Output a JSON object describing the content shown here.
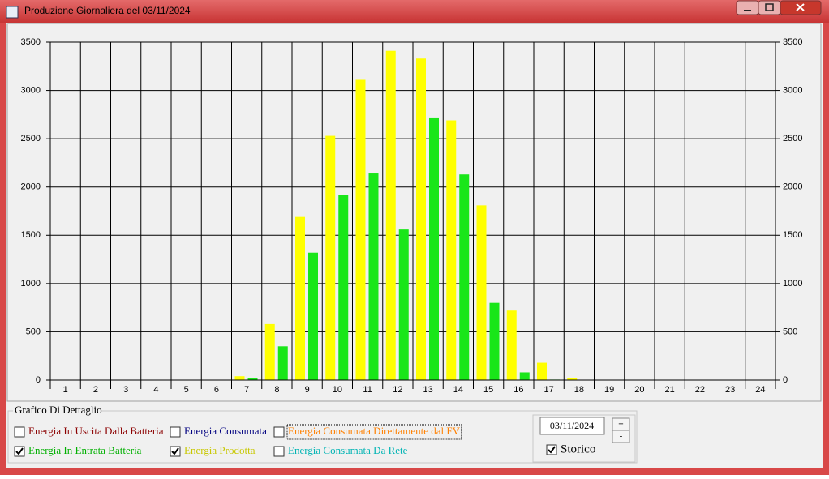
{
  "window": {
    "title": "Produzione Giornaliera del 03/11/2024"
  },
  "chart_data": {
    "type": "bar",
    "categories": [
      "1",
      "2",
      "3",
      "4",
      "5",
      "6",
      "7",
      "8",
      "9",
      "10",
      "11",
      "12",
      "13",
      "14",
      "15",
      "16",
      "17",
      "18",
      "19",
      "20",
      "21",
      "22",
      "23",
      "24"
    ],
    "series": [
      {
        "name": "Energia Prodotta",
        "color": "#ffff00",
        "visible": true,
        "values": [
          0,
          0,
          0,
          0,
          0,
          0,
          40,
          580,
          1690,
          2530,
          3110,
          3410,
          3330,
          2690,
          1810,
          720,
          180,
          25,
          0,
          0,
          0,
          0,
          0,
          0
        ]
      },
      {
        "name": "Energia In Entrata Batteria",
        "color": "#19e619",
        "visible": true,
        "values": [
          0,
          0,
          0,
          0,
          0,
          0,
          25,
          350,
          1320,
          1920,
          2140,
          1560,
          2720,
          2130,
          800,
          80,
          5,
          0,
          0,
          0,
          0,
          0,
          0,
          0
        ]
      }
    ],
    "ylim": [
      0,
      3500
    ],
    "yticks": [
      0,
      500,
      1000,
      1500,
      2000,
      2500,
      3000,
      3500
    ],
    "grid": true
  },
  "controls": {
    "group_title": "Grafico Di Dettaglio",
    "checkboxes": [
      {
        "label": "Energia In Uscita Dalla Batteria",
        "checked": false
      },
      {
        "label": "Energia Consumata",
        "checked": false
      },
      {
        "label": "Energia Consumata Direttamente dal FV",
        "checked": false
      },
      {
        "label": "Energia Consumata Da Rete",
        "checked": false
      }
    ],
    "date": "03/11/2024",
    "plus": "+",
    "minus": "-",
    "storico": {
      "label": "Storico",
      "checked": true
    }
  }
}
